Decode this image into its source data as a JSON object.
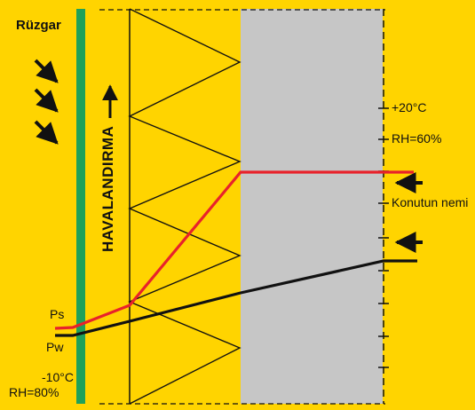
{
  "labels": {
    "wind": "Rüzgar",
    "ventilation": "HAVALANDIRMA",
    "ps": "Ps",
    "pw": "Pw",
    "outside_temp": "-10°C",
    "outside_rh": "RH=80%",
    "inside_temp": "+20°C",
    "inside_rh": "RH=60%",
    "home_humidity": "Konutun nemi"
  },
  "colors": {
    "background": "#ffd400",
    "green_layer": "#1fa15a",
    "gray_zone": "#c6c6c6",
    "red_line": "#e8222b",
    "black_line": "#111111"
  },
  "icons": {
    "wind_arrows": "arrow-down-right-icon",
    "ventilation_arrow": "arrow-up-icon",
    "inside_arrows": "arrow-left-icon"
  }
}
